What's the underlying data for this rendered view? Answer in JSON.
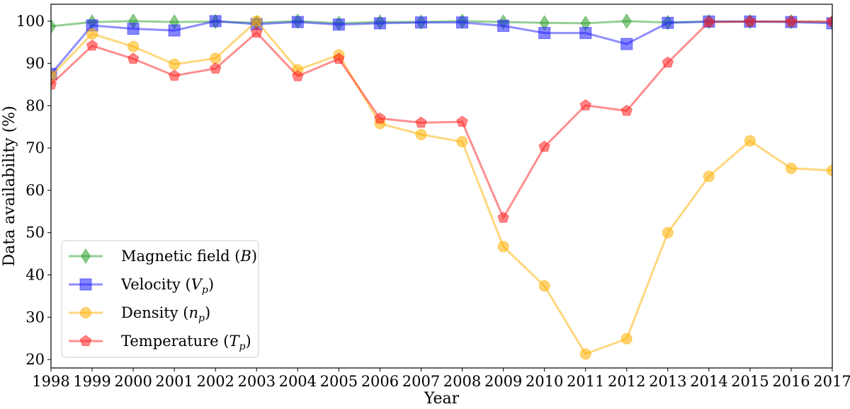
{
  "chart_data": {
    "type": "line",
    "xlabel": "Year",
    "ylabel": "Data availability (%)",
    "xlim": [
      1998,
      2017
    ],
    "ylim": [
      18,
      104
    ],
    "x": [
      1998,
      1999,
      2000,
      2001,
      2002,
      2003,
      2004,
      2005,
      2006,
      2007,
      2008,
      2009,
      2010,
      2011,
      2012,
      2013,
      2014,
      2015,
      2016,
      2017
    ],
    "x_ticks": [
      "1998",
      "1999",
      "2000",
      "2001",
      "2002",
      "2003",
      "2004",
      "2005",
      "2006",
      "2007",
      "2008",
      "2009",
      "2010",
      "2011",
      "2012",
      "2013",
      "2014",
      "2015",
      "2016",
      "2017"
    ],
    "y_ticks": [
      "20",
      "30",
      "40",
      "50",
      "60",
      "70",
      "80",
      "90",
      "100"
    ],
    "grid": false,
    "legend_position": "bottom-left",
    "series": [
      {
        "name": "Magnetic field (B)",
        "color": "#2ca02c",
        "marker": "diamond",
        "values": [
          98.8,
          99.8,
          100.0,
          99.8,
          99.9,
          99.6,
          100.0,
          99.5,
          99.8,
          99.8,
          100.0,
          99.8,
          99.6,
          99.5,
          100.0,
          99.7,
          99.9,
          99.9,
          99.9,
          99.8
        ]
      },
      {
        "name": "Velocity (Vp)",
        "color": "#1f1fff",
        "marker": "square",
        "values": [
          87.5,
          99.0,
          98.2,
          97.8,
          100.0,
          99.3,
          99.8,
          99.2,
          99.5,
          99.7,
          99.7,
          98.9,
          97.2,
          97.2,
          94.6,
          99.6,
          99.9,
          99.9,
          99.8,
          99.5
        ]
      },
      {
        "name": "Density (np)",
        "color": "#ffb000",
        "marker": "circle",
        "values": [
          87.0,
          97.0,
          94.0,
          89.8,
          91.2,
          100.0,
          88.5,
          92.0,
          75.8,
          73.2,
          71.5,
          46.7,
          37.4,
          21.3,
          24.9,
          50.0,
          63.3,
          71.7,
          65.2,
          64.7
        ]
      },
      {
        "name": "Temperature (Tp)",
        "color": "#ff1f1f",
        "marker": "pentagon",
        "values": [
          85.0,
          94.2,
          91.1,
          87.1,
          88.8,
          97.3,
          87.0,
          91.1,
          77.0,
          76.0,
          76.2,
          53.5,
          70.3,
          80.1,
          78.8,
          90.2,
          99.8,
          99.9,
          99.9,
          99.9
        ]
      }
    ]
  },
  "legend": {
    "items": [
      {
        "text": "Magnetic field ",
        "sym": "B",
        "sub": ""
      },
      {
        "text": "Velocity ",
        "sym": "V",
        "sub": "p"
      },
      {
        "text": "Density ",
        "sym": "n",
        "sub": "p"
      },
      {
        "text": "Temperature ",
        "sym": "T",
        "sub": "p"
      }
    ]
  }
}
